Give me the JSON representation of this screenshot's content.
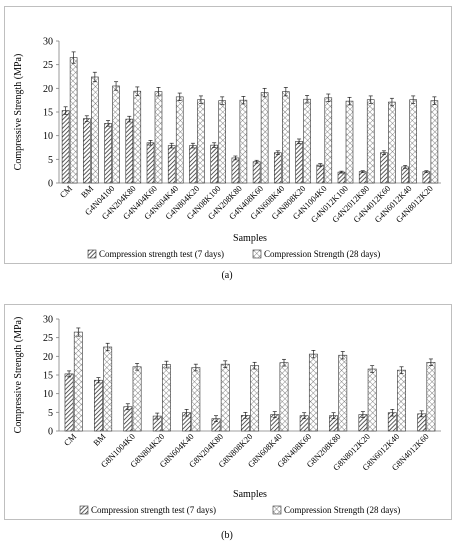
{
  "chart_data": [
    {
      "type": "bar",
      "panel_label": "(a)",
      "ylabel": "Compressive Strength (MPa)",
      "xlabel": "Samples",
      "ylim": [
        0,
        30
      ],
      "yticks": [
        0,
        5,
        10,
        15,
        20,
        25,
        30
      ],
      "grid": false,
      "legend_position": "bottom",
      "categories": [
        "CM",
        "BM",
        "G4N04100",
        "G4N204K80",
        "G4N404K60",
        "G4N604K40",
        "G4N804K20",
        "G4N08K100",
        "G4N208K80",
        "G4N408K60",
        "G4N608K40",
        "G4N808K20",
        "G4N1004K0",
        "G4N012K100",
        "G4N2012K80",
        "G4N4012K60",
        "G4N6012K40",
        "G4N8012K20"
      ],
      "series": [
        {
          "name": "Compression strength test (7 days)",
          "pattern": "diagonal-hatch",
          "values": [
            15.3,
            13.6,
            12.6,
            13.5,
            8.5,
            7.9,
            7.9,
            8.0,
            5.3,
            4.5,
            6.4,
            8.8,
            3.8,
            2.3,
            2.4,
            6.4,
            3.4,
            2.4
          ],
          "errors": [
            0.8,
            0.6,
            0.6,
            0.6,
            0.5,
            0.5,
            0.5,
            0.5,
            0.4,
            0.3,
            0.4,
            0.5,
            0.3,
            0.2,
            0.2,
            0.4,
            0.3,
            0.2
          ]
        },
        {
          "name": "Compression Strength (28 days)",
          "pattern": "crosshatch",
          "values": [
            26.5,
            22.4,
            20.5,
            19.4,
            19.3,
            18.2,
            17.6,
            17.4,
            17.5,
            19.1,
            19.3,
            17.7,
            18.0,
            17.3,
            17.6,
            17.1,
            17.6,
            17.4
          ],
          "errors": [
            1.2,
            1.0,
            0.9,
            0.9,
            0.9,
            0.8,
            0.8,
            0.8,
            0.8,
            0.9,
            0.9,
            0.8,
            0.8,
            0.8,
            0.8,
            0.8,
            0.8,
            0.8
          ]
        }
      ]
    },
    {
      "type": "bar",
      "panel_label": "(b)",
      "ylabel": "Compressive Strength (MPa)",
      "xlabel": "Samples",
      "ylim": [
        0,
        30
      ],
      "yticks": [
        0,
        5,
        10,
        15,
        20,
        25,
        30
      ],
      "grid": false,
      "legend_position": "bottom",
      "categories": [
        "CM",
        "BM",
        "G8N1004K0",
        "G8N804K20",
        "G8N604K40",
        "G8N204K80",
        "G8N808K20",
        "G8N608K40",
        "G8N408K60",
        "G8N208K80",
        "G8N8012K20",
        "G8N6012K40",
        "G8N4012K60"
      ],
      "series": [
        {
          "name": "Compression strength test (7 days)",
          "pattern": "diagonal-hatch",
          "values": [
            15.3,
            13.6,
            6.5,
            4.0,
            4.9,
            3.3,
            4.2,
            4.4,
            4.1,
            4.1,
            4.4,
            4.9,
            4.6
          ],
          "errors": [
            0.8,
            0.7,
            0.8,
            0.8,
            0.9,
            0.8,
            0.8,
            0.8,
            0.8,
            0.8,
            0.8,
            0.9,
            0.8
          ]
        },
        {
          "name": "Compression Strength (28 days)",
          "pattern": "crosshatch",
          "values": [
            26.5,
            22.5,
            17.2,
            17.8,
            17.0,
            17.9,
            17.5,
            18.3,
            20.6,
            20.3,
            16.6,
            16.3,
            18.4
          ],
          "errors": [
            1.1,
            1.0,
            0.9,
            0.9,
            0.9,
            0.9,
            0.9,
            0.9,
            1.0,
            1.0,
            0.9,
            0.9,
            0.9
          ]
        }
      ]
    }
  ],
  "captions": {
    "a": "(a)",
    "b": "(b)"
  },
  "colors": {
    "bar_fill": "#ffffff",
    "hatch": "#333333",
    "axis": "#7f7f7f",
    "text": "#000000"
  }
}
